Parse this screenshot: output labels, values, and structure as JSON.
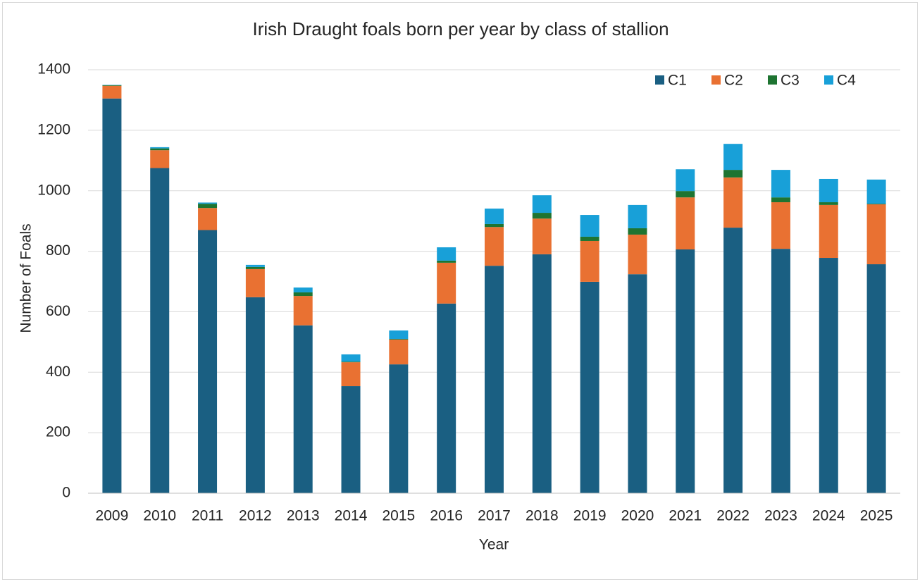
{
  "chart_data": {
    "type": "stacked_bar",
    "title": "Irish Draught foals born per year by class of stallion",
    "xlabel": "Year",
    "ylabel": "Number of Foals",
    "categories": [
      "2009",
      "2010",
      "2011",
      "2012",
      "2013",
      "2014",
      "2015",
      "2016",
      "2017",
      "2018",
      "2019",
      "2020",
      "2021",
      "2022",
      "2023",
      "2024",
      "2025"
    ],
    "series": [
      {
        "name": "C1",
        "color": "#1a5f82",
        "values": [
          1305,
          1075,
          870,
          648,
          555,
          354,
          426,
          627,
          752,
          790,
          699,
          724,
          806,
          878,
          808,
          778,
          757
        ]
      },
      {
        "name": "C2",
        "color": "#e97132",
        "values": [
          42,
          59,
          73,
          93,
          97,
          79,
          82,
          135,
          128,
          118,
          135,
          131,
          172,
          166,
          154,
          175,
          198
        ]
      },
      {
        "name": "C3",
        "color": "#1e7431",
        "values": [
          2,
          6,
          14,
          7,
          12,
          2,
          2,
          7,
          10,
          19,
          14,
          21,
          21,
          25,
          16,
          9,
          2
        ]
      },
      {
        "name": "C4",
        "color": "#18a0d8",
        "values": [
          1,
          4,
          4,
          7,
          16,
          24,
          28,
          44,
          51,
          58,
          72,
          77,
          72,
          86,
          91,
          77,
          80
        ]
      }
    ],
    "ylim": [
      0,
      1400
    ],
    "yticks": [
      0,
      200,
      400,
      600,
      800,
      1000,
      1200,
      1400
    ],
    "grid": true,
    "legend": "upper right"
  }
}
